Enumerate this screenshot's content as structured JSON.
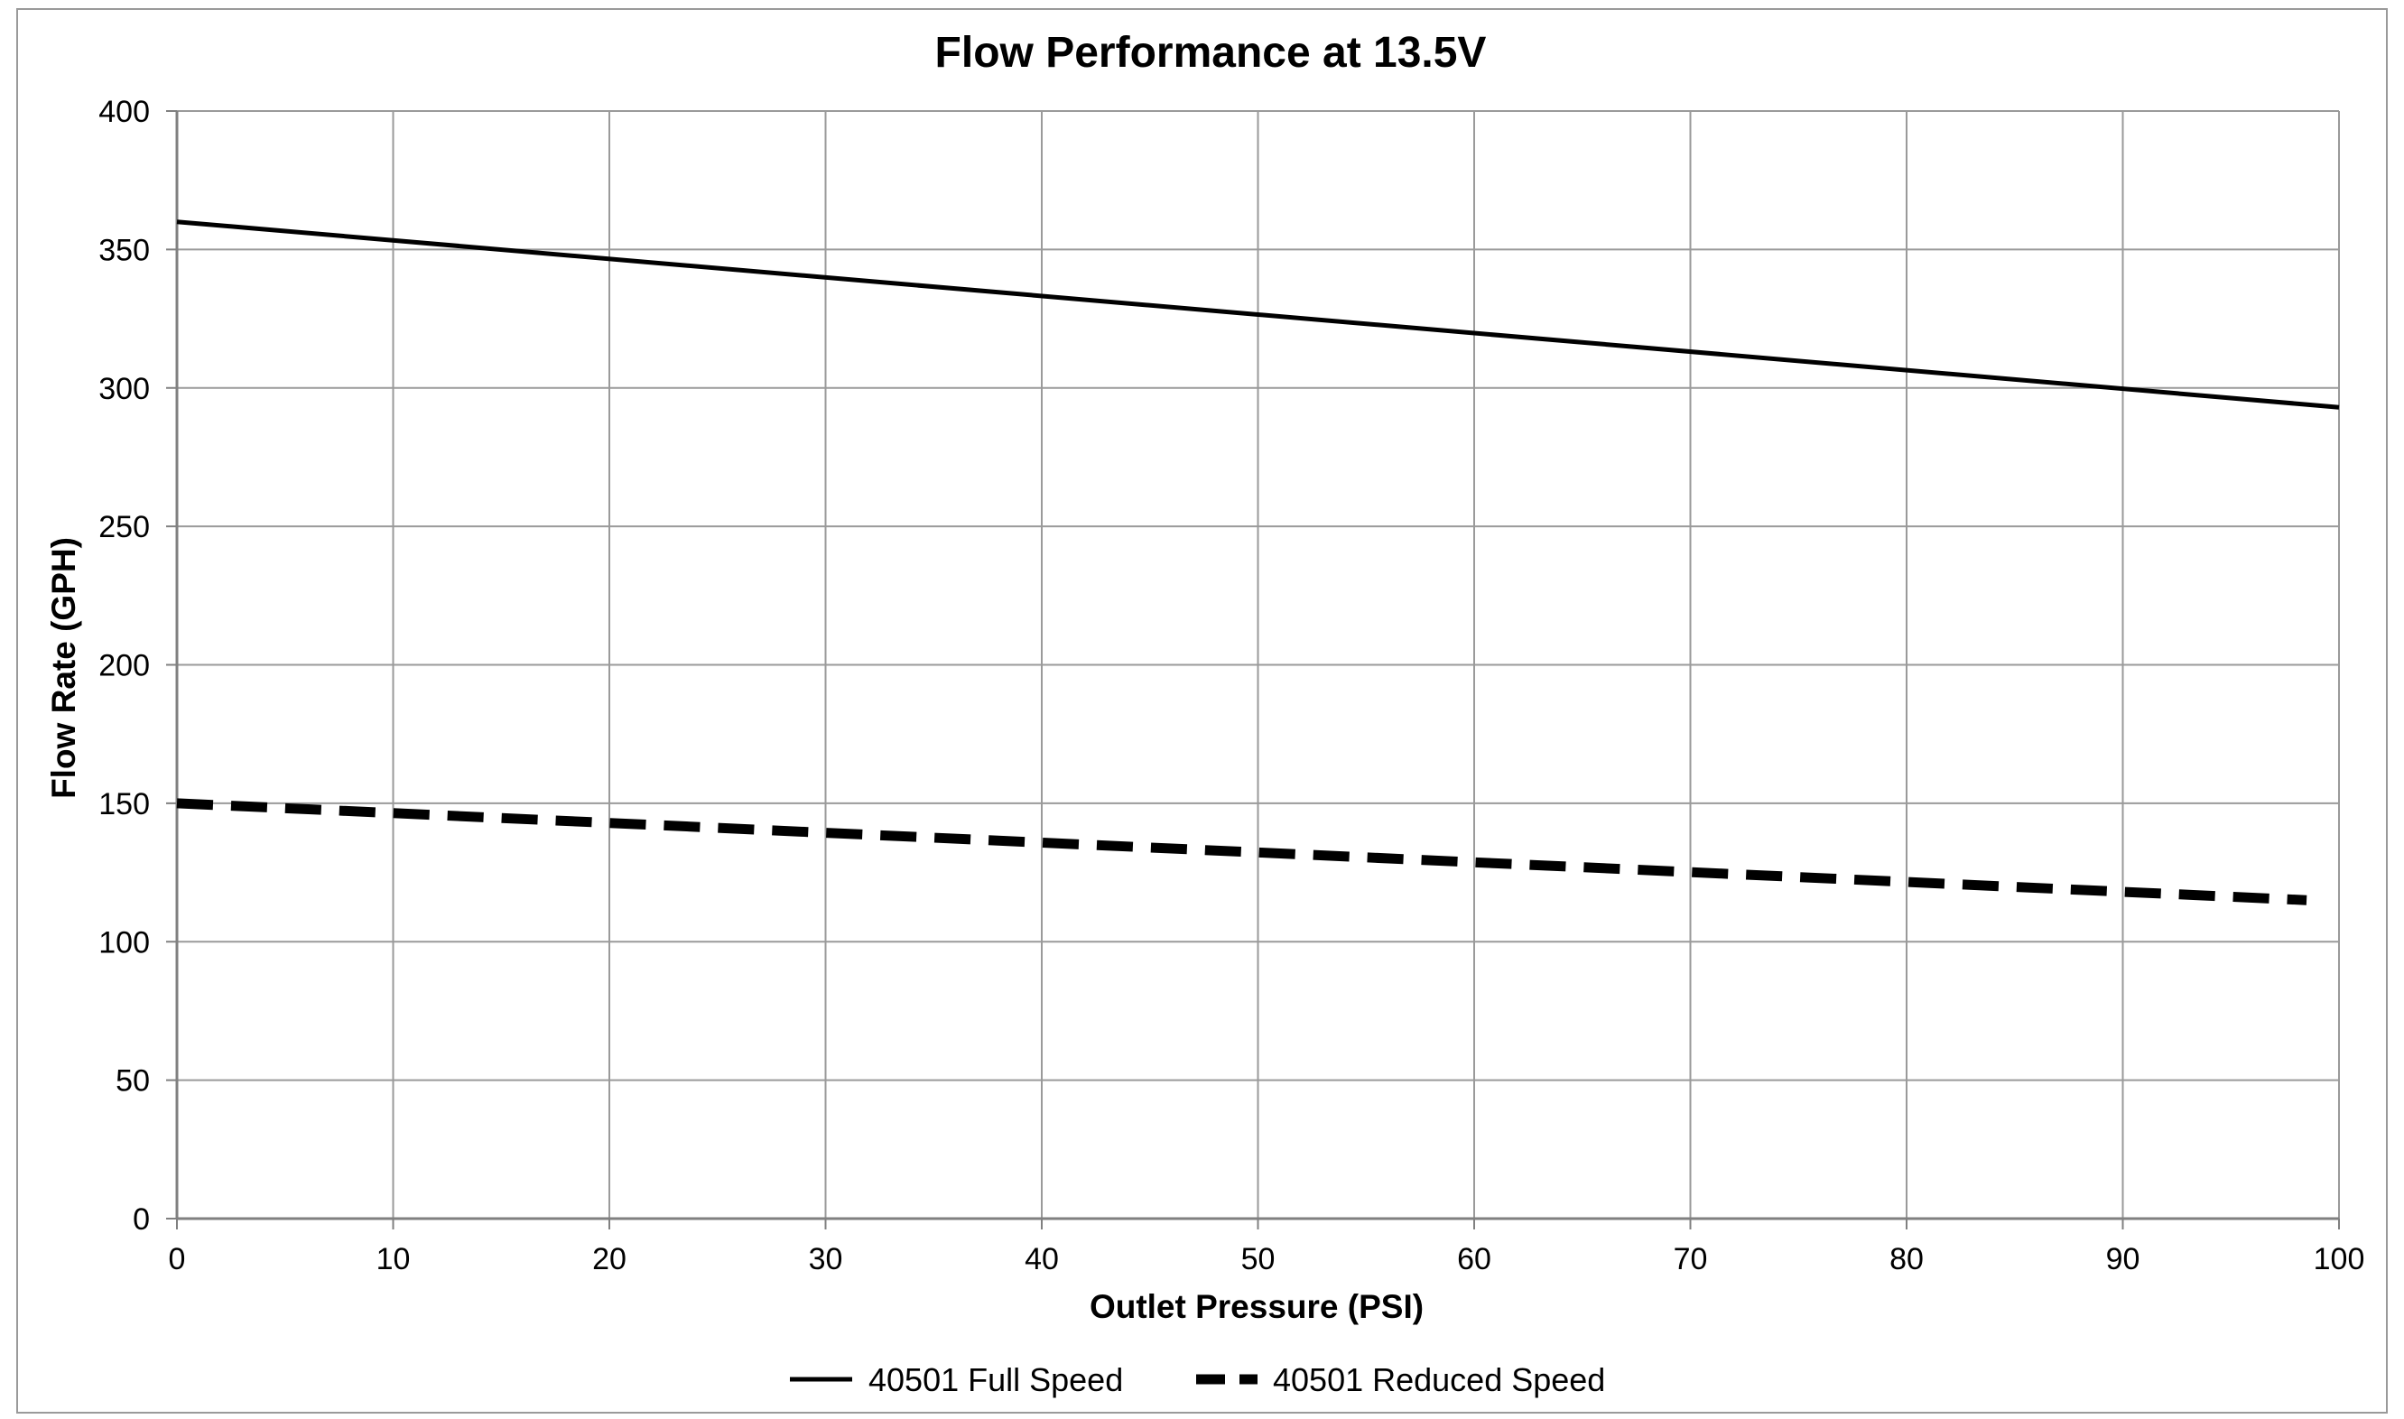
{
  "chart_data": {
    "type": "line",
    "title": "Flow Performance at 13.5V",
    "xlabel": "Outlet Pressure (PSI)",
    "ylabel": "Flow Rate (GPH)",
    "xlim": [
      0,
      100
    ],
    "ylim": [
      0,
      400
    ],
    "x_ticks": [
      0,
      10,
      20,
      30,
      40,
      50,
      60,
      70,
      80,
      90,
      100
    ],
    "y_ticks": [
      0,
      50,
      100,
      150,
      200,
      250,
      300,
      350,
      400
    ],
    "grid": true,
    "legend_position": "bottom",
    "series": [
      {
        "name": "40501 Full Speed",
        "style": "solid",
        "color": "#000000",
        "x": [
          0,
          100
        ],
        "y": [
          360,
          293
        ]
      },
      {
        "name": "40501 Reduced Speed",
        "style": "dashed",
        "color": "#000000",
        "x": [
          0,
          98.5
        ],
        "y": [
          150,
          115
        ]
      }
    ]
  }
}
